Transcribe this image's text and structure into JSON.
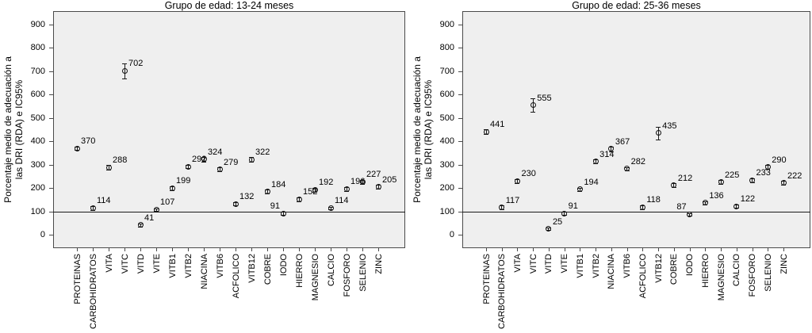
{
  "figure": {
    "kind": "errorbar-scatter-figure",
    "colors": {
      "plot_bg": "#efefef",
      "frame": "#4a4a4a",
      "text": "#000000",
      "line": "#1a1a1a"
    }
  },
  "chart_data": [
    {
      "type": "scatter",
      "title": "Grupo de edad: 13-24 meses",
      "ylabel": "Porcentaje medio de adecuación a\nlas DRI (RDA) e IC95%",
      "xlabel": "",
      "ylim": [
        0,
        900
      ],
      "yticks": [
        0,
        100,
        200,
        300,
        400,
        500,
        600,
        700,
        800,
        900
      ],
      "ref_line": 100,
      "grid": false,
      "legend": null,
      "categories": [
        "PROTEINAS",
        "CARBOHIDRATOS",
        "VITA",
        "VITC",
        "VITD",
        "VITE",
        "VITB1",
        "VITB2",
        "NIACINA",
        "VITB6",
        "ACFOLICO",
        "VITB12",
        "COBRE",
        "IODO",
        "HIERRO",
        "MAGNESIO",
        "CALCIO",
        "FOSFORO",
        "SELENIO",
        "ZINC"
      ],
      "values": [
        370,
        114,
        288,
        702,
        41,
        107,
        199,
        292,
        324,
        279,
        132,
        322,
        184,
        91,
        152,
        192,
        114,
        196,
        227,
        205
      ],
      "ci_half_width_approx": [
        8,
        8,
        10,
        33,
        6,
        6,
        8,
        8,
        10,
        8,
        8,
        10,
        8,
        6,
        8,
        8,
        6,
        8,
        8,
        8
      ],
      "label_side": {
        "13": "left"
      }
    },
    {
      "type": "scatter",
      "title": "Grupo de edad: 25-36 meses",
      "ylabel": "Porcentaje medio de adecuación a\nlas DRI (RDA) e IC95%",
      "xlabel": "",
      "ylim": [
        0,
        900
      ],
      "yticks": [
        0,
        100,
        200,
        300,
        400,
        500,
        600,
        700,
        800,
        900
      ],
      "ref_line": 100,
      "grid": false,
      "legend": null,
      "categories": [
        "PROTEINAS",
        "CARBOHIDRATOS",
        "VITA",
        "VITC",
        "VITD",
        "VITE",
        "VITB1",
        "VITB2",
        "NIACINA",
        "VITB6",
        "ACFOLICO",
        "VITB12",
        "COBRE",
        "IODO",
        "HIERRO",
        "MAGNESIO",
        "CALCIO",
        "FOSFORO",
        "SELENIO",
        "ZINC"
      ],
      "values": [
        441,
        117,
        230,
        555,
        25,
        91,
        194,
        314,
        367,
        282,
        118,
        435,
        212,
        87,
        136,
        225,
        122,
        233,
        290,
        222
      ],
      "ci_half_width_approx": [
        10,
        8,
        8,
        30,
        6,
        6,
        8,
        8,
        10,
        8,
        8,
        28,
        8,
        6,
        8,
        8,
        6,
        8,
        8,
        8
      ],
      "label_side": {
        "13": "left"
      }
    }
  ]
}
